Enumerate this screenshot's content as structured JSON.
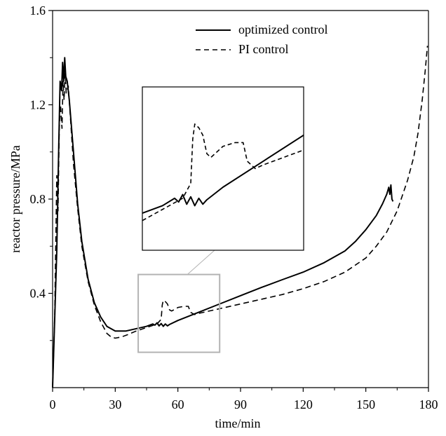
{
  "chart_data": {
    "type": "line",
    "title": "",
    "xlabel": "time/min",
    "ylabel": "reactor pressure/MPa",
    "xlim": [
      0,
      180
    ],
    "ylim": [
      0,
      1.6
    ],
    "x_ticks": [
      0,
      30,
      60,
      90,
      120,
      150,
      180
    ],
    "x_tick_labels": [
      "0",
      "30",
      "60",
      "90",
      "120",
      "150",
      "180"
    ],
    "y_ticks": [
      0.4,
      0.8,
      1.2,
      1.6
    ],
    "y_tick_labels": [
      "0.4",
      "0.8",
      "1.2",
      "1.6"
    ],
    "grid": false,
    "legend_position": "top-right",
    "series": [
      {
        "name": "optimized control",
        "style": "solid",
        "color": "#000000",
        "points": [
          [
            0,
            0
          ],
          [
            2,
            0.58
          ],
          [
            3,
            1.05
          ],
          [
            3.6,
            1.3
          ],
          [
            4.3,
            1.26
          ],
          [
            4.8,
            1.38
          ],
          [
            5.3,
            1.3
          ],
          [
            5.8,
            1.4
          ],
          [
            6.3,
            1.32
          ],
          [
            7,
            1.3
          ],
          [
            8,
            1.22
          ],
          [
            10,
            1.0
          ],
          [
            12,
            0.78
          ],
          [
            14,
            0.62
          ],
          [
            17,
            0.46
          ],
          [
            20,
            0.36
          ],
          [
            23,
            0.3
          ],
          [
            26,
            0.26
          ],
          [
            30,
            0.24
          ],
          [
            35,
            0.24
          ],
          [
            40,
            0.25
          ],
          [
            45,
            0.26
          ],
          [
            48,
            0.27
          ],
          [
            49,
            0.265
          ],
          [
            50,
            0.275
          ],
          [
            51,
            0.262
          ],
          [
            52,
            0.272
          ],
          [
            53,
            0.26
          ],
          [
            54,
            0.27
          ],
          [
            55,
            0.262
          ],
          [
            56,
            0.268
          ],
          [
            60,
            0.285
          ],
          [
            70,
            0.32
          ],
          [
            80,
            0.355
          ],
          [
            90,
            0.39
          ],
          [
            100,
            0.425
          ],
          [
            110,
            0.458
          ],
          [
            120,
            0.49
          ],
          [
            130,
            0.53
          ],
          [
            140,
            0.58
          ],
          [
            145,
            0.62
          ],
          [
            150,
            0.67
          ],
          [
            155,
            0.73
          ],
          [
            158,
            0.78
          ],
          [
            160,
            0.82
          ],
          [
            161,
            0.85
          ],
          [
            161.5,
            0.82
          ],
          [
            162,
            0.86
          ],
          [
            162.5,
            0.8
          ],
          [
            163,
            0.79
          ]
        ]
      },
      {
        "name": "PI control",
        "style": "dashed",
        "color": "#000000",
        "points": [
          [
            0,
            0
          ],
          [
            1,
            0.3
          ],
          [
            2,
            0.9
          ],
          [
            2.6,
            0.75
          ],
          [
            3.2,
            1.1
          ],
          [
            3.8,
            1.2
          ],
          [
            4.5,
            1.1
          ],
          [
            5,
            1.3
          ],
          [
            5.5,
            1.22
          ],
          [
            6,
            1.35
          ],
          [
            6.5,
            1.25
          ],
          [
            7.5,
            1.28
          ],
          [
            8.5,
            1.15
          ],
          [
            10,
            0.95
          ],
          [
            12,
            0.76
          ],
          [
            14,
            0.6
          ],
          [
            17,
            0.45
          ],
          [
            20,
            0.35
          ],
          [
            23,
            0.28
          ],
          [
            26,
            0.23
          ],
          [
            28,
            0.215
          ],
          [
            30,
            0.21
          ],
          [
            33,
            0.215
          ],
          [
            36,
            0.225
          ],
          [
            40,
            0.24
          ],
          [
            45,
            0.255
          ],
          [
            50,
            0.27
          ],
          [
            52,
            0.29
          ],
          [
            52.5,
            0.35
          ],
          [
            53,
            0.37
          ],
          [
            54,
            0.365
          ],
          [
            55,
            0.355
          ],
          [
            56,
            0.33
          ],
          [
            57,
            0.325
          ],
          [
            58,
            0.33
          ],
          [
            60,
            0.34
          ],
          [
            63,
            0.345
          ],
          [
            65,
            0.345
          ],
          [
            66,
            0.32
          ],
          [
            68,
            0.31
          ],
          [
            70,
            0.315
          ],
          [
            80,
            0.335
          ],
          [
            90,
            0.355
          ],
          [
            100,
            0.375
          ],
          [
            110,
            0.395
          ],
          [
            120,
            0.42
          ],
          [
            130,
            0.45
          ],
          [
            140,
            0.49
          ],
          [
            150,
            0.55
          ],
          [
            155,
            0.6
          ],
          [
            160,
            0.66
          ],
          [
            165,
            0.75
          ],
          [
            170,
            0.88
          ],
          [
            173,
            0.98
          ],
          [
            175,
            1.08
          ],
          [
            177,
            1.22
          ],
          [
            178.5,
            1.35
          ],
          [
            179.5,
            1.45
          ]
        ]
      }
    ],
    "inset": {
      "description": "zoom of highlighted region",
      "source_xlim": [
        41,
        80
      ],
      "source_ylim": [
        0.15,
        0.48
      ],
      "view_xlim": [
        40,
        80
      ],
      "view_ylim": [
        0.2,
        0.42
      ]
    }
  }
}
